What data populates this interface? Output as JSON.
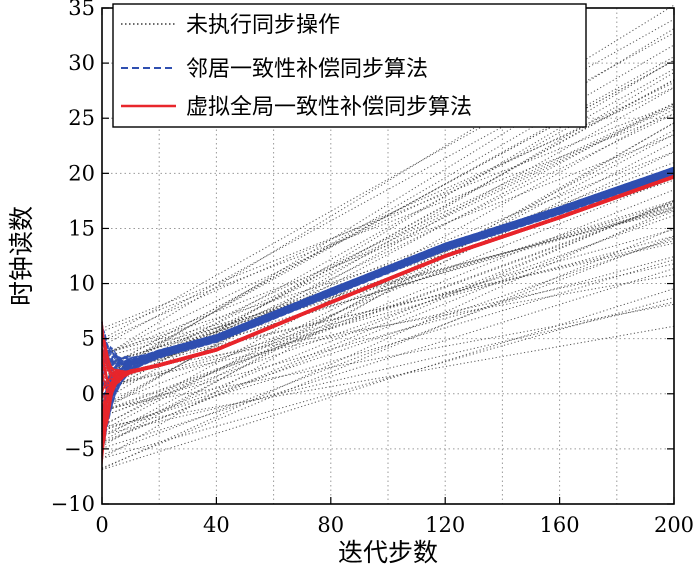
{
  "chart_data": {
    "type": "line",
    "title": "",
    "xlabel": "迭代步数",
    "ylabel": "时钟读数",
    "xlim": [
      0,
      200
    ],
    "ylim": [
      -10,
      35
    ],
    "xticks": [
      0,
      40,
      80,
      120,
      160,
      200
    ],
    "yticks": [
      -10,
      -5,
      0,
      5,
      10,
      15,
      20,
      25,
      30,
      35
    ],
    "grid": true,
    "legend_position": "top-left",
    "colors": {
      "unsync": "#3a3a3a",
      "neighbor": "#2f4fb0",
      "virtual": "#e8262b"
    },
    "series": [
      {
        "name": "未执行同步操作",
        "style": "dotted",
        "description_of_family": "many clock lines, each linear in step",
        "initial_value_range": [
          -7,
          6
        ],
        "slope_range": [
          0.045,
          0.16
        ]
      },
      {
        "name": "邻居一致性补偿同步算法",
        "style": "dashed",
        "x": [
          0,
          2,
          5,
          10,
          15,
          20,
          40,
          80,
          120,
          160,
          200
        ],
        "values": [
          0,
          0.8,
          1.8,
          2.6,
          3.1,
          3.6,
          5.0,
          9.2,
          13.3,
          16.6,
          20.2
        ],
        "initial_spread": [
          -6,
          6
        ]
      },
      {
        "name": "虚拟全局一致性补偿同步算法",
        "style": "solid",
        "x": [
          0,
          2,
          5,
          10,
          15,
          20,
          40,
          80,
          120,
          160,
          200
        ],
        "values": [
          0,
          0.5,
          1.5,
          2.0,
          2.3,
          2.6,
          4.0,
          8.3,
          12.5,
          16.0,
          19.7
        ],
        "initial_spread": [
          -6.5,
          6.5
        ]
      }
    ]
  }
}
